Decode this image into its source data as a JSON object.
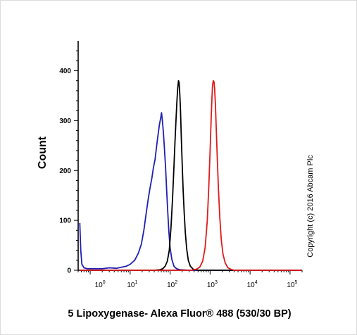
{
  "chart_data": {
    "type": "line",
    "title": "",
    "xlabel": "5 Lipoxygenase- Alexa Fluor® 488 (530/30 BP)",
    "ylabel": "Count",
    "x_scale": "log",
    "xlim": [
      0.5,
      200000
    ],
    "ylim": [
      0,
      460
    ],
    "y_ticks": [
      0,
      100,
      200,
      300,
      400
    ],
    "x_ticks": [
      {
        "base": "10",
        "exp": "0",
        "value": 1
      },
      {
        "base": "10",
        "exp": "1",
        "value": 10
      },
      {
        "base": "10",
        "exp": "2",
        "value": 100
      },
      {
        "base": "10",
        "exp": "3",
        "value": 1000
      },
      {
        "base": "10",
        "exp": "4",
        "value": 10000
      },
      {
        "base": "10",
        "exp": "5",
        "value": 100000
      }
    ],
    "annotation": "Copyright (c) 2016 Abcam Plc",
    "series": [
      {
        "color": "#1f1fb4",
        "points": [
          [
            0.55,
            95
          ],
          [
            0.58,
            40
          ],
          [
            0.62,
            12
          ],
          [
            0.7,
            5
          ],
          [
            0.85,
            3
          ],
          [
            1.2,
            3
          ],
          [
            2.0,
            3
          ],
          [
            3.0,
            5
          ],
          [
            4.5,
            4
          ],
          [
            6.0,
            6
          ],
          [
            8.0,
            8
          ],
          [
            10,
            12
          ],
          [
            13,
            20
          ],
          [
            16,
            34
          ],
          [
            19,
            52
          ],
          [
            22,
            80
          ],
          [
            25,
            112
          ],
          [
            28,
            140
          ],
          [
            31,
            162
          ],
          [
            35,
            185
          ],
          [
            38,
            205
          ],
          [
            42,
            222
          ],
          [
            46,
            250
          ],
          [
            50,
            272
          ],
          [
            54,
            292
          ],
          [
            58,
            305
          ],
          [
            61,
            316
          ],
          [
            64,
            300
          ],
          [
            68,
            275
          ],
          [
            72,
            245
          ],
          [
            77,
            205
          ],
          [
            82,
            160
          ],
          [
            87,
            118
          ],
          [
            93,
            78
          ],
          [
            100,
            45
          ],
          [
            110,
            22
          ],
          [
            125,
            8
          ],
          [
            145,
            3
          ],
          [
            180,
            1
          ],
          [
            300,
            0
          ],
          [
            200000,
            0
          ]
        ]
      },
      {
        "color": "#000000",
        "points": [
          [
            0.55,
            0
          ],
          [
            40,
            0
          ],
          [
            55,
            1
          ],
          [
            65,
            3
          ],
          [
            75,
            8
          ],
          [
            85,
            18
          ],
          [
            95,
            40
          ],
          [
            105,
            85
          ],
          [
            115,
            145
          ],
          [
            125,
            210
          ],
          [
            133,
            260
          ],
          [
            140,
            300
          ],
          [
            148,
            340
          ],
          [
            155,
            365
          ],
          [
            162,
            380
          ],
          [
            168,
            376
          ],
          [
            175,
            352
          ],
          [
            182,
            318
          ],
          [
            190,
            270
          ],
          [
            200,
            215
          ],
          [
            212,
            160
          ],
          [
            225,
            115
          ],
          [
            240,
            75
          ],
          [
            260,
            42
          ],
          [
            285,
            20
          ],
          [
            320,
            8
          ],
          [
            380,
            2
          ],
          [
            500,
            0
          ],
          [
            200000,
            0
          ]
        ]
      },
      {
        "color": "#e01a1a",
        "points": [
          [
            0.55,
            0
          ],
          [
            350,
            0
          ],
          [
            450,
            2
          ],
          [
            550,
            6
          ],
          [
            650,
            18
          ],
          [
            750,
            45
          ],
          [
            850,
            100
          ],
          [
            930,
            170
          ],
          [
            1000,
            240
          ],
          [
            1060,
            300
          ],
          [
            1110,
            345
          ],
          [
            1150,
            370
          ],
          [
            1200,
            380
          ],
          [
            1250,
            378
          ],
          [
            1300,
            362
          ],
          [
            1360,
            330
          ],
          [
            1430,
            280
          ],
          [
            1520,
            220
          ],
          [
            1620,
            160
          ],
          [
            1750,
            105
          ],
          [
            1900,
            62
          ],
          [
            2100,
            32
          ],
          [
            2400,
            14
          ],
          [
            2800,
            5
          ],
          [
            3300,
            2
          ],
          [
            4000,
            0
          ],
          [
            200000,
            0
          ]
        ]
      }
    ]
  }
}
